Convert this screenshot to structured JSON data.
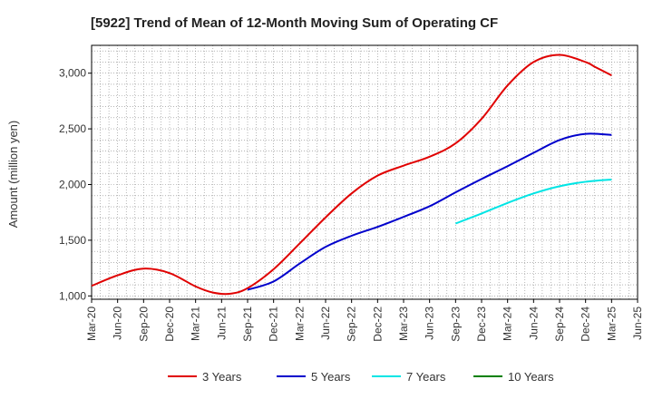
{
  "chart_data": {
    "type": "line",
    "title": "[5922]  Trend of Mean of 12-Month Moving Sum of Operating CF",
    "xlabel": "",
    "ylabel": "Amount (million yen)",
    "ylim": [
      970,
      3250
    ],
    "yticks": [
      1000,
      1500,
      2000,
      2500,
      3000
    ],
    "ytick_labels": [
      "1,000",
      "1,500",
      "2,000",
      "2,500",
      "3,000"
    ],
    "x_tick_labels": [
      "Mar-20",
      "Jun-20",
      "Sep-20",
      "Dec-20",
      "Mar-21",
      "Jun-21",
      "Sep-21",
      "Dec-21",
      "Mar-22",
      "Jun-22",
      "Sep-22",
      "Dec-22",
      "Mar-23",
      "Jun-23",
      "Sep-23",
      "Dec-23",
      "Mar-24",
      "Jun-24",
      "Sep-24",
      "Dec-24",
      "Mar-25",
      "Jun-25"
    ],
    "x_range_months": [
      0,
      63
    ],
    "grid": true,
    "legend_position": "bottom",
    "series": [
      {
        "name": "3 Years",
        "color": "#e00000",
        "x": [
          0,
          3,
          6,
          9,
          12,
          14,
          16,
          18,
          21,
          24,
          27,
          30,
          33,
          36,
          39,
          42,
          45,
          48,
          51,
          54,
          57,
          58,
          60
        ],
        "values": [
          1090,
          1185,
          1245,
          1205,
          1085,
          1030,
          1020,
          1070,
          1240,
          1470,
          1705,
          1920,
          2080,
          2170,
          2250,
          2370,
          2590,
          2890,
          3100,
          3165,
          3100,
          3060,
          2980
        ]
      },
      {
        "name": "5 Years",
        "color": "#0000cc",
        "x": [
          18,
          21,
          24,
          27,
          30,
          33,
          36,
          39,
          42,
          45,
          48,
          51,
          54,
          57,
          60
        ],
        "values": [
          1055,
          1130,
          1290,
          1440,
          1540,
          1620,
          1710,
          1805,
          1930,
          2050,
          2165,
          2285,
          2400,
          2455,
          2445
        ]
      },
      {
        "name": "7 Years",
        "color": "#00e5e5",
        "x": [
          42,
          45,
          48,
          51,
          54,
          57,
          60
        ],
        "values": [
          1650,
          1740,
          1835,
          1920,
          1985,
          2025,
          2045
        ]
      },
      {
        "name": "10 Years",
        "color": "#008000",
        "x": [],
        "values": []
      }
    ]
  }
}
